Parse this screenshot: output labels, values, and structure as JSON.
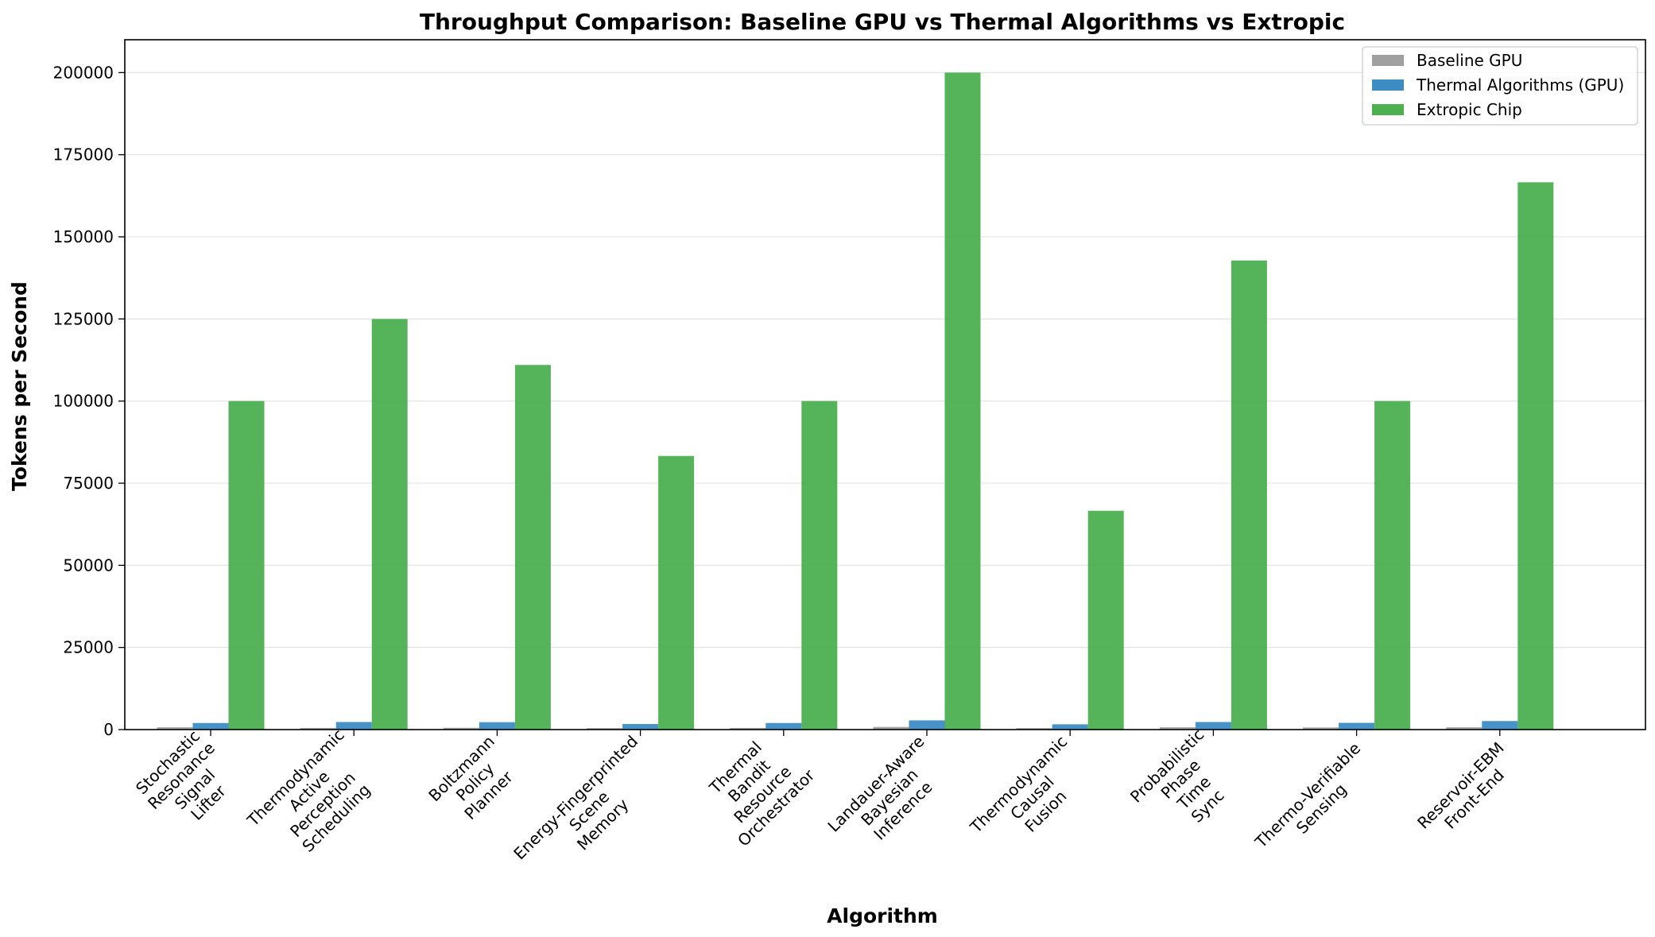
{
  "chart_data": {
    "type": "bar",
    "title": "Throughput Comparison: Baseline GPU vs Thermal Algorithms vs Extropic",
    "xlabel": "Algorithm",
    "ylabel": "Tokens per Second",
    "ylim": [
      0,
      210000
    ],
    "yticks": [
      0,
      25000,
      50000,
      75000,
      100000,
      125000,
      150000,
      175000,
      200000
    ],
    "ytick_labels": [
      "0",
      "25000",
      "50000",
      "75000",
      "100000",
      "125000",
      "150000",
      "175000",
      "200000"
    ],
    "grid": "y",
    "legend_position": "top-right",
    "categories": [
      [
        "Stochastic",
        "Resonance",
        "Signal",
        "Lifter"
      ],
      [
        "Thermodynamic",
        "Active",
        "Perception",
        "Scheduling"
      ],
      [
        "Boltzmann",
        "Policy",
        "Planner"
      ],
      [
        "Energy-Fingerprinted",
        "Scene",
        "Memory"
      ],
      [
        "Thermal",
        "Bandit",
        "Resource",
        "Orchestrator"
      ],
      [
        "Landauer-Aware",
        "Bayesian",
        "Inference"
      ],
      [
        "Thermodynamic",
        "Causal",
        "Fusion"
      ],
      [
        "Probabilistic",
        "Phase",
        "Time",
        "Sync"
      ],
      [
        "Thermo-Verifiable",
        "Sensing"
      ],
      [
        "Reservoir-EBM",
        "Front-End"
      ]
    ],
    "series": [
      {
        "name": "Baseline GPU",
        "color": "#a0a0a0",
        "values": [
          700,
          500,
          550,
          450,
          500,
          800,
          450,
          700,
          650,
          700
        ]
      },
      {
        "name": "Thermal Algorithms (GPU)",
        "color": "#3d8cc4",
        "values": [
          2000,
          2300,
          2250,
          1700,
          2000,
          2800,
          1600,
          2300,
          2050,
          2600
        ]
      },
      {
        "name": "Extropic Chip",
        "color": "#4caf50",
        "values": [
          100000,
          125000,
          111000,
          83300,
          100000,
          200000,
          66600,
          142800,
          100000,
          166600
        ]
      }
    ]
  }
}
